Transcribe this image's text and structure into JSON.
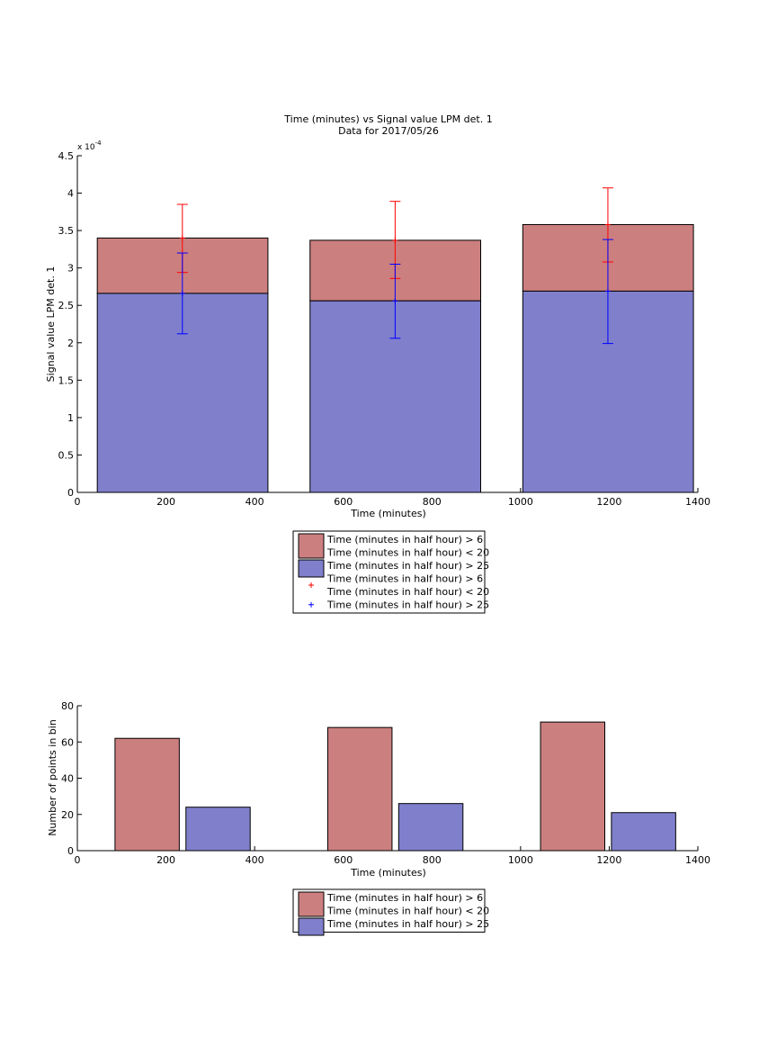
{
  "chart_data": [
    {
      "type": "bar",
      "title": "Time (minutes) vs Signal value LPM det. 1",
      "subtitle": "Data for 2017/05/26",
      "xlabel": "Time (minutes)",
      "ylabel": "Signal value LPM det. 1",
      "y_multiplier_label": "x 10",
      "y_multiplier_exponent": "-4",
      "xlim": [
        0,
        1400
      ],
      "ylim": [
        0,
        4.5
      ],
      "xticks": [
        "0",
        "200",
        "400",
        "600",
        "800",
        "1000",
        "1200",
        "1400"
      ],
      "yticks": [
        "0",
        "0.5",
        "1",
        "1.5",
        "2",
        "2.5",
        "3",
        "3.5",
        "4",
        "4.5"
      ],
      "bars": [
        {
          "x_start": 45,
          "x_end": 430,
          "low": 2.66,
          "high": 3.4
        },
        {
          "x_start": 525,
          "x_end": 910,
          "low": 2.56,
          "high": 3.37
        },
        {
          "x_start": 1005,
          "x_end": 1390,
          "low": 2.69,
          "high": 3.58
        }
      ],
      "series": [
        {
          "name": "Time (minutes in half hour) > 6\nTime (minutes in half hour) < 20",
          "color": "#cc7f7f",
          "values": [
            3.4,
            3.37,
            3.58
          ]
        },
        {
          "name": "Time (minutes in half hour) > 25",
          "color": "#7f7fcc",
          "values": [
            2.66,
            2.56,
            2.69
          ]
        }
      ],
      "error_bars": [
        {
          "name": "Time (minutes in half hour) > 6\nTime (minutes in half hour) < 20",
          "color": "#ff0000",
          "x": [
            237,
            717,
            1197
          ],
          "center": [
            3.4,
            3.37,
            3.58
          ],
          "low": [
            2.94,
            2.86,
            3.08
          ],
          "high": [
            3.85,
            3.89,
            4.07
          ]
        },
        {
          "name": "Time (minutes in half hour) > 25",
          "color": "#0000ff",
          "x": [
            237,
            717,
            1197
          ],
          "center": [
            2.66,
            2.56,
            2.69
          ],
          "low": [
            2.12,
            2.06,
            1.99
          ],
          "high": [
            3.2,
            3.05,
            3.38
          ]
        }
      ],
      "legend": {
        "placement": "below",
        "entries": [
          {
            "kind": "patch",
            "color": "#cc7f7f",
            "lines": [
              "Time (minutes in half hour) > 6",
              "Time (minutes in half hour) < 20"
            ]
          },
          {
            "kind": "patch",
            "color": "#7f7fcc",
            "lines": [
              "Time (minutes in half hour) > 25"
            ]
          },
          {
            "kind": "marker",
            "color": "#ff0000",
            "lines": [
              "Time (minutes in half hour) > 6",
              "Time (minutes in half hour) < 20"
            ]
          },
          {
            "kind": "marker",
            "color": "#0000ff",
            "lines": [
              "Time (minutes in half hour) > 25"
            ]
          }
        ]
      }
    },
    {
      "type": "bar",
      "xlabel": "Time (minutes)",
      "ylabel": "Number of points in bin",
      "xlim": [
        0,
        1400
      ],
      "ylim": [
        0,
        80
      ],
      "xticks": [
        "0",
        "200",
        "400",
        "600",
        "800",
        "1000",
        "1200",
        "1400"
      ],
      "yticks": [
        "0",
        "20",
        "40",
        "60",
        "80"
      ],
      "series": [
        {
          "name": "Time (minutes in half hour) > 6\nTime (minutes in half hour) < 20",
          "color": "#cc7f7f",
          "x_start": [
            85,
            565,
            1045
          ],
          "x_end": [
            230,
            710,
            1190
          ],
          "values": [
            62,
            68,
            71
          ]
        },
        {
          "name": "Time (minutes in half hour) > 25",
          "color": "#7f7fcc",
          "x_start": [
            245,
            725,
            1205
          ],
          "x_end": [
            390,
            870,
            1350
          ],
          "values": [
            24,
            26,
            21
          ]
        }
      ],
      "legend": {
        "placement": "below",
        "entries": [
          {
            "kind": "patch",
            "color": "#cc7f7f",
            "lines": [
              "Time (minutes in half hour) > 6",
              "Time (minutes in half hour) < 20"
            ]
          },
          {
            "kind": "patch",
            "color": "#7f7fcc",
            "lines": [
              "Time (minutes in half hour) > 25"
            ]
          }
        ]
      }
    }
  ]
}
